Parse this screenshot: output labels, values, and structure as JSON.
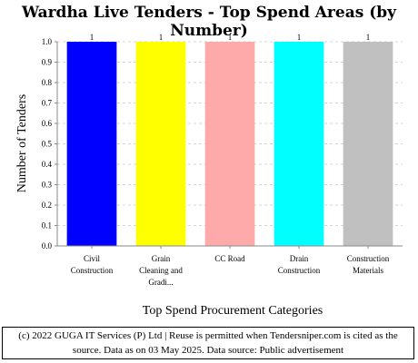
{
  "chart_data": {
    "type": "bar",
    "title": "Wardha Live Tenders - Top Spend Areas (by Number)",
    "xlabel": "Top Spend Procurement Categories",
    "ylabel": "Number of Tenders",
    "categories": [
      [
        "Civil",
        "Construction"
      ],
      [
        "Grain",
        "Cleaning and",
        "Gradi..."
      ],
      [
        "CC Road"
      ],
      [
        "Drain",
        "Construction"
      ],
      [
        "Construction",
        "Materials"
      ]
    ],
    "values": [
      1,
      1,
      1,
      1,
      1
    ],
    "data_labels": [
      "1",
      "1",
      "1",
      "1",
      "1"
    ],
    "colors": [
      "#0000ff",
      "#ffff00",
      "#ffaaaa",
      "#00ffff",
      "#c0c0c0"
    ],
    "ylim": [
      0,
      1.0
    ],
    "yticks": [
      "0.0",
      "0.1",
      "0.2",
      "0.3",
      "0.4",
      "0.5",
      "0.6",
      "0.7",
      "0.8",
      "0.9",
      "1.0"
    ],
    "grid": true,
    "legend": "none"
  },
  "footer": {
    "line1": "(c) 2022 GUGA IT Services (P) Ltd | Reuse is permitted when Tendersniper.com is cited as the",
    "line2": "source. Data as on 03 May 2025. Data source: Public advertisement"
  }
}
